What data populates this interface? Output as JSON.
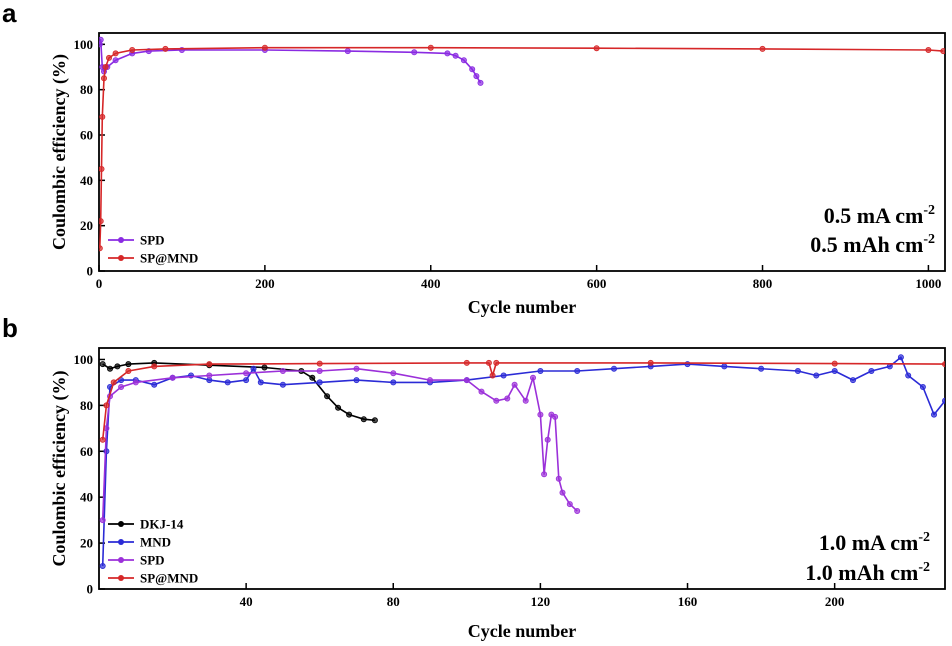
{
  "chart_data": [
    {
      "panel": "a",
      "type": "line",
      "xlabel": "Cycle number",
      "ylabel": "Coulombic efficiency (%)",
      "xlim": [
        0,
        1020
      ],
      "ylim": [
        0,
        105
      ],
      "xticks": [
        0,
        200,
        400,
        600,
        800,
        1000
      ],
      "yticks": [
        0,
        20,
        40,
        60,
        80,
        100
      ],
      "legend_position": "bottom-left",
      "conditions": [
        {
          "main": "0.5 mA cm",
          "sup": "-2"
        },
        {
          "main": "0.5 mAh cm",
          "sup": "-2"
        }
      ],
      "series": [
        {
          "name": "SPD",
          "color": "#8a2be2",
          "points": [
            [
              1,
              100
            ],
            [
              2,
              102
            ],
            [
              4,
              90
            ],
            [
              6,
              88
            ],
            [
              10,
              90
            ],
            [
              20,
              93
            ],
            [
              40,
              96
            ],
            [
              60,
              97
            ],
            [
              100,
              97.5
            ],
            [
              200,
              97.5
            ],
            [
              300,
              97
            ],
            [
              380,
              96.5
            ],
            [
              420,
              96
            ],
            [
              430,
              95
            ],
            [
              440,
              93
            ],
            [
              450,
              89
            ],
            [
              455,
              86
            ],
            [
              460,
              83
            ]
          ]
        },
        {
          "name": "SP@MND",
          "color": "#d62728",
          "points": [
            [
              1,
              10
            ],
            [
              2,
              22
            ],
            [
              3,
              45
            ],
            [
              4,
              68
            ],
            [
              6,
              85
            ],
            [
              8,
              90
            ],
            [
              12,
              94
            ],
            [
              20,
              96
            ],
            [
              40,
              97.5
            ],
            [
              80,
              98
            ],
            [
              200,
              98.5
            ],
            [
              400,
              98.5
            ],
            [
              600,
              98.3
            ],
            [
              800,
              98
            ],
            [
              1000,
              97.5
            ],
            [
              1018,
              97
            ]
          ]
        }
      ]
    },
    {
      "panel": "b",
      "type": "line",
      "xlabel": "Cycle number",
      "ylabel": "Coulombic efficiency (%)",
      "xlim": [
        0,
        230
      ],
      "ylim": [
        0,
        105
      ],
      "xticks": [
        40,
        80,
        120,
        160,
        200
      ],
      "yticks": [
        0,
        20,
        40,
        60,
        80,
        100
      ],
      "legend_position": "bottom-left",
      "conditions": [
        {
          "main": "1.0 mA cm",
          "sup": "-2"
        },
        {
          "main": "1.0 mAh cm",
          "sup": "-2"
        }
      ],
      "series": [
        {
          "name": "DKJ-14",
          "color": "#000000",
          "points": [
            [
              1,
              98
            ],
            [
              3,
              96
            ],
            [
              5,
              97
            ],
            [
              8,
              98
            ],
            [
              15,
              98.5
            ],
            [
              30,
              97.5
            ],
            [
              45,
              96.5
            ],
            [
              55,
              95
            ],
            [
              58,
              92
            ],
            [
              62,
              84
            ],
            [
              65,
              79
            ],
            [
              68,
              76
            ],
            [
              72,
              74
            ],
            [
              75,
              73.5
            ]
          ]
        },
        {
          "name": "MND",
          "color": "#2b2bd6",
          "points": [
            [
              1,
              10
            ],
            [
              2,
              60
            ],
            [
              3,
              88
            ],
            [
              6,
              91
            ],
            [
              10,
              91
            ],
            [
              15,
              89
            ],
            [
              20,
              92
            ],
            [
              25,
              93
            ],
            [
              30,
              91
            ],
            [
              35,
              90
            ],
            [
              40,
              91
            ],
            [
              42,
              96
            ],
            [
              44,
              90
            ],
            [
              50,
              89
            ],
            [
              60,
              90
            ],
            [
              70,
              91
            ],
            [
              80,
              90
            ],
            [
              90,
              90
            ],
            [
              100,
              91
            ],
            [
              110,
              93
            ],
            [
              120,
              95
            ],
            [
              130,
              95
            ],
            [
              140,
              96
            ],
            [
              150,
              97
            ],
            [
              160,
              98
            ],
            [
              170,
              97
            ],
            [
              180,
              96
            ],
            [
              190,
              95
            ],
            [
              195,
              93
            ],
            [
              200,
              95
            ],
            [
              205,
              91
            ],
            [
              210,
              95
            ],
            [
              215,
              97
            ],
            [
              218,
              101
            ],
            [
              220,
              93
            ],
            [
              224,
              88
            ],
            [
              227,
              76
            ],
            [
              230,
              82
            ]
          ]
        },
        {
          "name": "SPD",
          "color": "#9b30d9",
          "points": [
            [
              1,
              30
            ],
            [
              2,
              70
            ],
            [
              3,
              84
            ],
            [
              6,
              88
            ],
            [
              10,
              90
            ],
            [
              20,
              92
            ],
            [
              30,
              93
            ],
            [
              40,
              94
            ],
            [
              50,
              95
            ],
            [
              60,
              95
            ],
            [
              70,
              96
            ],
            [
              80,
              94
            ],
            [
              90,
              91
            ],
            [
              100,
              91
            ],
            [
              104,
              86
            ],
            [
              108,
              82
            ],
            [
              111,
              83
            ],
            [
              113,
              89
            ],
            [
              116,
              82
            ],
            [
              118,
              92
            ],
            [
              120,
              76
            ],
            [
              121,
              50
            ],
            [
              122,
              65
            ],
            [
              123,
              76
            ],
            [
              124,
              75
            ],
            [
              125,
              48
            ],
            [
              126,
              42
            ],
            [
              128,
              37
            ],
            [
              130,
              34
            ]
          ]
        },
        {
          "name": "SP@MND",
          "color": "#d62728",
          "points": [
            [
              1,
              65
            ],
            [
              2,
              80
            ],
            [
              4,
              90
            ],
            [
              8,
              95
            ],
            [
              15,
              97
            ],
            [
              30,
              98
            ],
            [
              60,
              98.2
            ],
            [
              100,
              98.5
            ],
            [
              106,
              98.5
            ],
            [
              107,
              93
            ],
            [
              108,
              98.5
            ],
            [
              150,
              98.5
            ],
            [
              200,
              98.2
            ],
            [
              230,
              98
            ]
          ]
        }
      ]
    }
  ]
}
